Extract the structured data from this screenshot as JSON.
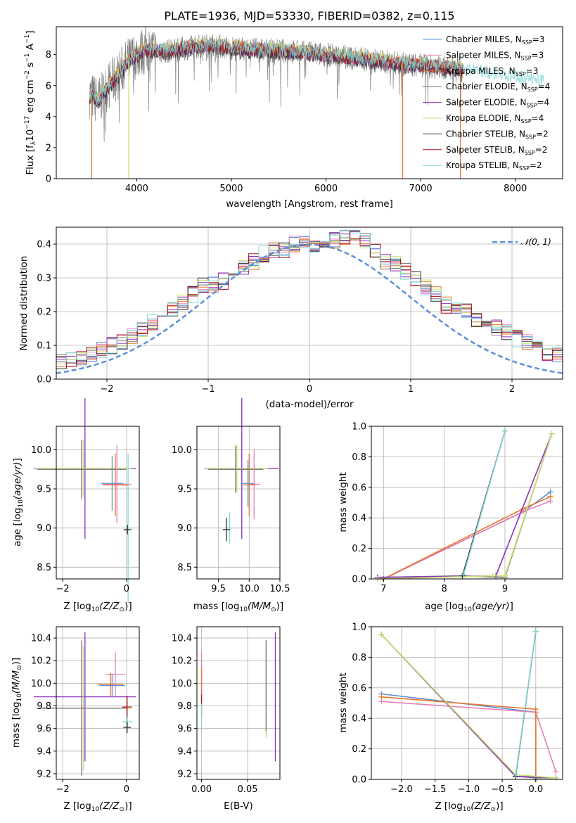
{
  "colors": {
    "chabrier_miles": "#5b8fd9",
    "salpeter_miles": "#e87fb4",
    "kroupa_miles": "#e8742a",
    "chabrier_elodie": "#707070",
    "salpeter_elodie": "#8d2ec0",
    "kroupa_elodie": "#c7e26b",
    "chabrier_stelib": "#2e2e2e",
    "salpeter_stelib": "#b3121b",
    "kroupa_stelib": "#7fd6d9",
    "normal_curve": "#5b8fd9"
  },
  "chart_data": [
    {
      "id": "spectrum",
      "type": "line",
      "title": "PLATE=1936, MJD=53330, FIBERID=0382, z=0.115",
      "xlabel": "wavelength [Angstrom, rest frame]",
      "ylabel": "Flux [fλ10⁻¹⁷ erg cm⁻² s⁻¹ A⁻¹]",
      "xlim": [
        3150,
        8500
      ],
      "ylim": [
        0,
        9.8
      ],
      "xticks": [
        "4000",
        "5000",
        "6000",
        "7000",
        "8000"
      ],
      "yticks": [
        "0",
        "2",
        "4",
        "6",
        "8"
      ],
      "grid": false,
      "legend_position": "top-right",
      "legend": [
        "Chabrier MILES, N_SSP=3",
        "Salpeter MILES, N_SSP=3",
        "Kroupa MILES, N_SSP=3",
        "Chabrier ELODIE, N_SSP=4",
        "Salpeter ELODIE, N_SSP=4",
        "Kroupa ELODIE, N_SSP=4",
        "Chabrier STELIB, N_SSP=2",
        "Salpeter STELIB, N_SSP=2",
        "Kroupa STELIB, N_SSP=2"
      ],
      "continuum_x": [
        3500,
        3600,
        3700,
        3800,
        3900,
        4000,
        4100,
        4300,
        4600,
        4800,
        5000,
        5300,
        5600,
        6000,
        6400,
        6800,
        7200,
        7600,
        8000,
        8300
      ],
      "continuum_y": [
        5.4,
        5.0,
        6.0,
        6.6,
        7.5,
        8.0,
        8.3,
        8.2,
        8.5,
        8.6,
        8.4,
        8.3,
        8.2,
        8.0,
        7.7,
        7.4,
        7.2,
        6.9,
        6.5,
        6.3
      ],
      "dips_x": [
        3525,
        3915,
        6810,
        7420
      ],
      "observed_x_range": [
        3500,
        7450
      ]
    },
    {
      "id": "residuals",
      "type": "line",
      "xlabel": "(data-model)/error",
      "ylabel": "Normed distribution",
      "xlim": [
        -2.5,
        2.5
      ],
      "ylim": [
        0,
        0.45
      ],
      "xticks": [
        "−2",
        "−1",
        "0",
        "1",
        "2"
      ],
      "yticks": [
        "0.0",
        "0.1",
        "0.2",
        "0.3",
        "0.4"
      ],
      "grid": true,
      "legend_position": "top-right",
      "legend": [
        "𝒩(0, 1)"
      ],
      "bin_width": 0.1,
      "histogram_base": [
        0.015,
        0.02,
        0.03,
        0.04,
        0.045,
        0.05,
        0.06,
        0.065,
        0.075,
        0.085,
        0.1,
        0.11,
        0.13,
        0.15,
        0.17,
        0.19,
        0.21,
        0.23,
        0.25,
        0.28,
        0.28,
        0.29,
        0.32,
        0.33,
        0.35,
        0.37,
        0.38,
        0.38,
        0.4,
        0.41,
        0.4,
        0.4,
        0.41,
        0.42,
        0.42,
        0.41,
        0.38,
        0.35,
        0.34,
        0.32,
        0.3,
        0.27,
        0.25,
        0.22,
        0.21,
        0.2,
        0.18,
        0.16,
        0.15,
        0.14,
        0.12,
        0.11,
        0.1,
        0.07,
        0.07,
        0.06,
        0.05,
        0.045,
        0.04,
        0.035
      ]
    },
    {
      "id": "age_vs_z",
      "type": "scatter",
      "xlabel": "Z [log₁₀(Z/Z⊙)]",
      "ylabel": "age  [log₁₀(age/yr)]",
      "xlim": [
        -2.2,
        0.4
      ],
      "ylim": [
        8.35,
        10.3
      ],
      "xticks": [
        "−2",
        "0"
      ],
      "yticks": [
        "8.5",
        "9.0",
        "9.5",
        "10.0"
      ],
      "grid": true,
      "errorbars": [
        {
          "series": "salpeter_elodie",
          "x": -1.3,
          "y": 9.76,
          "xerr": 1.6,
          "yerr": 0.9
        },
        {
          "series": "kroupa_elodie",
          "x": -1.35,
          "y": 9.76,
          "xerr": 1.5,
          "yerr": 0.36
        },
        {
          "series": "chabrier_elodie",
          "x": -1.4,
          "y": 9.75,
          "xerr": 1.4,
          "yerr": 0.38
        },
        {
          "series": "salpeter_miles",
          "x": -0.3,
          "y": 9.56,
          "xerr": 0.45,
          "yerr": 0.5
        },
        {
          "series": "kroupa_miles",
          "x": -0.35,
          "y": 9.55,
          "xerr": 0.4,
          "yerr": 0.4
        },
        {
          "series": "chabrier_miles",
          "x": -0.45,
          "y": 9.57,
          "xerr": 0.35,
          "yerr": 0.35
        },
        {
          "series": "kroupa_stelib",
          "x": 0.05,
          "y": 9.0,
          "xerr": 0.15,
          "yerr": 0.95
        },
        {
          "series": "chabrier_stelib",
          "x": 0.03,
          "y": 8.98,
          "xerr": 0.12,
          "yerr": 0.06
        }
      ]
    },
    {
      "id": "age_vs_mass",
      "type": "scatter",
      "xlabel": "mass [log₁₀(M/M⊙)]",
      "xlim": [
        9.15,
        10.5
      ],
      "ylim": [
        8.35,
        10.3
      ],
      "xticks": [
        "9.5",
        "10.0",
        "10.5"
      ],
      "yticks": [
        "8.5",
        "9.0",
        "9.5",
        "10.0"
      ],
      "grid": true,
      "errorbars": [
        {
          "series": "salpeter_elodie",
          "x": 9.88,
          "y": 9.76,
          "xerr": 0.6,
          "yerr": 0.9
        },
        {
          "series": "kroupa_elodie",
          "x": 9.8,
          "y": 9.76,
          "xerr": 0.5,
          "yerr": 0.3
        },
        {
          "series": "chabrier_elodie",
          "x": 9.78,
          "y": 9.75,
          "xerr": 0.45,
          "yerr": 0.3
        },
        {
          "series": "salpeter_miles",
          "x": 10.08,
          "y": 9.56,
          "xerr": 0.1,
          "yerr": 0.45
        },
        {
          "series": "kroupa_miles",
          "x": 10.0,
          "y": 9.55,
          "xerr": 0.1,
          "yerr": 0.4
        },
        {
          "series": "chabrier_miles",
          "x": 9.98,
          "y": 9.57,
          "xerr": 0.1,
          "yerr": 0.3
        },
        {
          "series": "kroupa_stelib",
          "x": 9.68,
          "y": 9.0,
          "xerr": 0.06,
          "yerr": 0.2
        },
        {
          "series": "chabrier_stelib",
          "x": 9.63,
          "y": 8.98,
          "xerr": 0.06,
          "yerr": 0.15
        }
      ]
    },
    {
      "id": "weight_vs_age",
      "type": "line",
      "xlabel": "age  [log₁₀(age/yr)]",
      "ylabel": "mass weight",
      "xlim": [
        6.8,
        9.95
      ],
      "ylim": [
        0,
        1.0
      ],
      "xticks": [
        "7",
        "8",
        "9"
      ],
      "yticks": [
        "0.0",
        "0.2",
        "0.4",
        "0.6",
        "0.8",
        "1.0"
      ],
      "grid": true,
      "series": [
        {
          "key": "chabrier_miles",
          "x": [
            7.0,
            9.3,
            9.75
          ],
          "y": [
            0.0,
            0.44,
            0.57
          ]
        },
        {
          "key": "salpeter_miles",
          "x": [
            7.0,
            9.3,
            9.75
          ],
          "y": [
            0.0,
            0.44,
            0.51
          ]
        },
        {
          "key": "kroupa_miles",
          "x": [
            7.0,
            9.3,
            9.75
          ],
          "y": [
            0.0,
            0.46,
            0.54
          ]
        },
        {
          "key": "chabrier_elodie",
          "x": [
            6.9,
            8.3,
            9.0,
            9.77
          ],
          "y": [
            0.01,
            0.02,
            0.01,
            0.95
          ]
        },
        {
          "key": "salpeter_elodie",
          "x": [
            6.9,
            8.85,
            9.77
          ],
          "y": [
            0.01,
            0.02,
            0.95
          ]
        },
        {
          "key": "kroupa_elodie",
          "x": [
            6.9,
            8.8,
            9.0,
            9.77
          ],
          "y": [
            0.0,
            0.02,
            0.02,
            0.95
          ]
        },
        {
          "key": "chabrier_stelib",
          "x": [
            8.3,
            9.0
          ],
          "y": [
            0.02,
            0.97
          ]
        },
        {
          "key": "kroupa_stelib",
          "x": [
            8.32,
            9.0
          ],
          "y": [
            0.03,
            0.97
          ]
        }
      ]
    },
    {
      "id": "mass_vs_z",
      "type": "scatter",
      "xlabel": "Z [log₁₀(Z/Z⊙)]",
      "ylabel": "mass [log₁₀(M/M⊙)]",
      "xlim": [
        -2.2,
        0.4
      ],
      "ylim": [
        9.15,
        10.5
      ],
      "xticks": [
        "−2",
        "0"
      ],
      "yticks": [
        "9.2",
        "9.4",
        "9.6",
        "9.8",
        "10.0",
        "10.2",
        "10.4"
      ],
      "grid": true,
      "errorbars": [
        {
          "series": "salpeter_elodie",
          "x": -1.3,
          "y": 9.88,
          "xerr": 1.6,
          "yerr": 0.57
        },
        {
          "series": "kroupa_elodie",
          "x": -1.35,
          "y": 9.78,
          "xerr": 1.5,
          "yerr": 0.55
        },
        {
          "series": "chabrier_elodie",
          "x": -1.4,
          "y": 9.78,
          "xerr": 1.4,
          "yerr": 0.6
        },
        {
          "series": "salpeter_miles",
          "x": -0.35,
          "y": 10.08,
          "xerr": 0.3,
          "yerr": 0.2
        },
        {
          "series": "kroupa_miles",
          "x": -0.5,
          "y": 9.99,
          "xerr": 0.4,
          "yerr": 0.1
        },
        {
          "series": "chabrier_miles",
          "x": -0.45,
          "y": 9.98,
          "xerr": 0.4,
          "yerr": 0.1
        },
        {
          "series": "salpeter_stelib",
          "x": 0.02,
          "y": 9.79,
          "xerr": 0.15,
          "yerr": 0.1
        },
        {
          "series": "kroupa_stelib",
          "x": 0.03,
          "y": 9.66,
          "xerr": 0.15,
          "yerr": 0.05
        },
        {
          "series": "chabrier_stelib",
          "x": 0.02,
          "y": 9.61,
          "xerr": 0.12,
          "yerr": 0.05
        }
      ]
    },
    {
      "id": "mass_vs_ebv",
      "type": "scatter",
      "xlabel": "E(B-V)",
      "xlim": [
        -0.005,
        0.085
      ],
      "ylim": [
        9.15,
        10.5
      ],
      "xticks": [
        "0.00",
        "0.05"
      ],
      "yticks": [
        "9.2",
        "9.4",
        "9.6",
        "9.8",
        "10.0",
        "10.2",
        "10.4"
      ],
      "grid": true,
      "errorbars": [
        {
          "series": "salpeter_elodie",
          "x": 0.08,
          "y": 9.88,
          "xerr": 0.0,
          "yerr": 0.57
        },
        {
          "series": "kroupa_elodie",
          "x": 0.07,
          "y": 9.92,
          "xerr": 0.0,
          "yerr": 0.4
        },
        {
          "series": "chabrier_elodie",
          "x": 0.07,
          "y": 9.98,
          "xerr": 0.0,
          "yerr": 0.4
        },
        {
          "series": "salpeter_miles",
          "x": 0.0,
          "y": 10.08,
          "xerr": 0.0,
          "yerr": 0.2
        },
        {
          "series": "kroupa_miles",
          "x": 0.0,
          "y": 9.99,
          "xerr": 0.0,
          "yerr": 0.15
        },
        {
          "series": "salpeter_stelib",
          "x": 0.0,
          "y": 9.8,
          "xerr": 0.0,
          "yerr": 0.1
        },
        {
          "series": "kroupa_stelib",
          "x": 0.0,
          "y": 9.7,
          "xerr": 0.0,
          "yerr": 0.12
        }
      ]
    },
    {
      "id": "weight_vs_z",
      "type": "line",
      "xlabel": "Z [log₁₀(Z/Z⊙)]",
      "ylabel": "mass weight",
      "xlim": [
        -2.45,
        0.4
      ],
      "ylim": [
        0,
        1.0
      ],
      "xticks": [
        "−2.0",
        "−1.5",
        "−1.0",
        "−0.5",
        "0.0"
      ],
      "yticks": [
        "0.0",
        "0.2",
        "0.4",
        "0.6",
        "0.8",
        "1.0"
      ],
      "grid": true,
      "series": [
        {
          "key": "chabrier_miles",
          "x": [
            -2.3,
            0.0,
            0.0
          ],
          "y": [
            0.56,
            0.44,
            0.0
          ]
        },
        {
          "key": "salpeter_miles",
          "x": [
            -2.3,
            0.0,
            0.3
          ],
          "y": [
            0.51,
            0.44,
            0.05
          ]
        },
        {
          "key": "kroupa_miles",
          "x": [
            -2.3,
            0.0,
            0.0
          ],
          "y": [
            0.54,
            0.46,
            0.0
          ]
        },
        {
          "key": "chabrier_elodie",
          "x": [
            -2.3,
            -0.3,
            0.0,
            0.3
          ],
          "y": [
            0.95,
            0.02,
            0.01,
            0.01
          ]
        },
        {
          "key": "salpeter_elodie",
          "x": [
            -2.3,
            -0.3,
            0.3
          ],
          "y": [
            0.95,
            0.02,
            0.01
          ]
        },
        {
          "key": "kroupa_elodie",
          "x": [
            -2.3,
            -0.3,
            0.3
          ],
          "y": [
            0.95,
            0.03,
            0.01
          ]
        },
        {
          "key": "chabrier_stelib",
          "x": [
            -0.3,
            0.0
          ],
          "y": [
            0.02,
            0.97
          ]
        },
        {
          "key": "kroupa_stelib",
          "x": [
            -0.3,
            0.0
          ],
          "y": [
            0.03,
            0.97
          ]
        }
      ]
    }
  ]
}
